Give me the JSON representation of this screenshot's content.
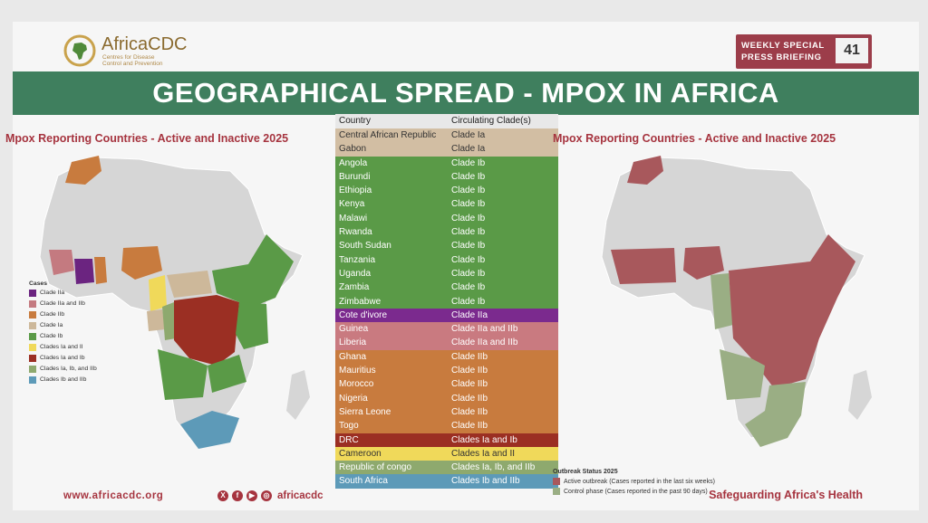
{
  "header": {
    "org_name": "AfricaCDC",
    "org_subtitle": "Centres for Disease Control and Prevention",
    "briefing_label": "WEEKLY SPECIAL PRESS BRIEFING",
    "briefing_number": "41",
    "title": "GEOGRAPHICAL SPREAD - MPOX IN AFRICA"
  },
  "left_map": {
    "title": "Mpox Reporting Countries - Active and Inactive 2025",
    "legend_title": "Cases",
    "legend": [
      {
        "label": "Clade IIa",
        "color": "#6b2480"
      },
      {
        "label": "Clade IIa and IIb",
        "color": "#c47a80"
      },
      {
        "label": "Clade IIb",
        "color": "#c87b3e"
      },
      {
        "label": "Clade Ia",
        "color": "#cdb89a"
      },
      {
        "label": "Clade Ib",
        "color": "#5a9a47"
      },
      {
        "label": "Clades Ia and II",
        "color": "#f0d95a"
      },
      {
        "label": "Clades Ia and Ib",
        "color": "#9b2f23"
      },
      {
        "label": "Clades Ia, Ib, and IIb",
        "color": "#8ea96e"
      },
      {
        "label": "Clades Ib and IIb",
        "color": "#5d9ab8"
      }
    ]
  },
  "right_map": {
    "title": "Mpox Reporting Countries - Active and Inactive 2025",
    "legend_title": "Outbreak Status 2025",
    "legend": [
      {
        "label": "Active outbreak (Cases reported in the last six weeks)",
        "color": "#a8585c"
      },
      {
        "label": "Control phase (Cases reported in the past 90 days)",
        "color": "#9aae84"
      }
    ]
  },
  "table": {
    "headers": [
      "Country",
      "Circulating Clade(s)"
    ],
    "rows": [
      {
        "country": "Central African Republic",
        "clade": "Clade Ia",
        "color": "#d2bea3",
        "text": "#333333"
      },
      {
        "country": "Gabon",
        "clade": "Clade Ia",
        "color": "#d2bea3",
        "text": "#333333"
      },
      {
        "country": "Angola",
        "clade": "Clade Ib",
        "color": "#5a9a47",
        "text": "#ffffff"
      },
      {
        "country": "Burundi",
        "clade": "Clade Ib",
        "color": "#5a9a47",
        "text": "#ffffff"
      },
      {
        "country": "Ethiopia",
        "clade": "Clade Ib",
        "color": "#5a9a47",
        "text": "#ffffff"
      },
      {
        "country": "Kenya",
        "clade": "Clade Ib",
        "color": "#5a9a47",
        "text": "#ffffff"
      },
      {
        "country": "Malawi",
        "clade": "Clade Ib",
        "color": "#5a9a47",
        "text": "#ffffff"
      },
      {
        "country": "Rwanda",
        "clade": "Clade Ib",
        "color": "#5a9a47",
        "text": "#ffffff"
      },
      {
        "country": "South Sudan",
        "clade": "Clade Ib",
        "color": "#5a9a47",
        "text": "#ffffff"
      },
      {
        "country": "Tanzania",
        "clade": "Clade Ib",
        "color": "#5a9a47",
        "text": "#ffffff"
      },
      {
        "country": "Uganda",
        "clade": "Clade Ib",
        "color": "#5a9a47",
        "text": "#ffffff"
      },
      {
        "country": "Zambia",
        "clade": "Clade Ib",
        "color": "#5a9a47",
        "text": "#ffffff"
      },
      {
        "country": "Zimbabwe",
        "clade": "Clade Ib",
        "color": "#5a9a47",
        "text": "#ffffff"
      },
      {
        "country": "Cote d'ivore",
        "clade": "Clade IIa",
        "color": "#7b2a8e",
        "text": "#ffffff"
      },
      {
        "country": "Guinea",
        "clade": "Clade IIa and IIb",
        "color": "#c97a80",
        "text": "#ffffff"
      },
      {
        "country": "Liberia",
        "clade": "Clade IIa and IIb",
        "color": "#c97a80",
        "text": "#ffffff"
      },
      {
        "country": "Ghana",
        "clade": "Clade IIb",
        "color": "#c87b3e",
        "text": "#ffffff"
      },
      {
        "country": "Mauritius",
        "clade": "Clade IIb",
        "color": "#c87b3e",
        "text": "#ffffff"
      },
      {
        "country": "Morocco",
        "clade": "Clade IIb",
        "color": "#c87b3e",
        "text": "#ffffff"
      },
      {
        "country": "Nigeria",
        "clade": "Clade IIb",
        "color": "#c87b3e",
        "text": "#ffffff"
      },
      {
        "country": "Sierra Leone",
        "clade": "Clade IIb",
        "color": "#c87b3e",
        "text": "#ffffff"
      },
      {
        "country": "Togo",
        "clade": "Clade IIb",
        "color": "#c87b3e",
        "text": "#ffffff"
      },
      {
        "country": "DRC",
        "clade": "Clades Ia and Ib",
        "color": "#9b2f23",
        "text": "#ffffff"
      },
      {
        "country": "Cameroon",
        "clade": "Clades Ia and II",
        "color": "#f0d95a",
        "text": "#333333"
      },
      {
        "country": "Republic of congo",
        "clade": "Clades Ia, Ib, and IIb",
        "color": "#8ea96e",
        "text": "#ffffff"
      },
      {
        "country": "South Africa",
        "clade": "Clades Ib and IIb",
        "color": "#5d9ab8",
        "text": "#ffffff"
      }
    ]
  },
  "footer": {
    "url": "www.africacdc.org",
    "social_icons": [
      "x-icon",
      "facebook-icon",
      "youtube-icon",
      "instagram-icon"
    ],
    "handle": "africacdc",
    "tagline": "Safeguarding Africa's Health"
  }
}
